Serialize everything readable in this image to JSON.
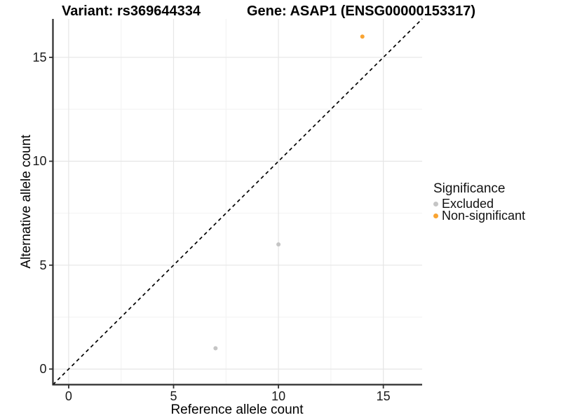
{
  "chart_data": {
    "type": "scatter",
    "title_left": "Variant: rs369644334",
    "title_right": "Gene: ASAP1 (ENSG00000153317)",
    "xlabel": "Reference allele count",
    "ylabel": "Alternative allele count",
    "xlim": [
      -0.75,
      16.85
    ],
    "ylim": [
      -0.75,
      16.85
    ],
    "x_ticks": [
      0,
      5,
      10,
      15
    ],
    "y_ticks": [
      0,
      5,
      10,
      15
    ],
    "x_minor_ticks": [
      2.5,
      7.5,
      12.5
    ],
    "y_minor_ticks": [
      2.5,
      7.5,
      12.5
    ],
    "grid": "major+minor",
    "identity_line": {
      "style": "dashed",
      "color": "#000000",
      "from": [
        -0.75,
        -0.75
      ],
      "to": [
        16.85,
        16.85
      ]
    },
    "legend": {
      "title": "Significance",
      "position": "right"
    },
    "series": [
      {
        "name": "Excluded",
        "color": "#c5c5c5",
        "points": [
          {
            "x": 7,
            "y": 1
          },
          {
            "x": 10,
            "y": 6
          }
        ]
      },
      {
        "name": "Non-significant",
        "color": "#f9a432",
        "points": [
          {
            "x": 14,
            "y": 16
          }
        ]
      }
    ],
    "style_colors": {
      "grid_major": "#e6e6e6",
      "grid_minor": "#f2f2f2",
      "axis_line": "#2b2b2b",
      "tick_mark": "#333333"
    }
  }
}
